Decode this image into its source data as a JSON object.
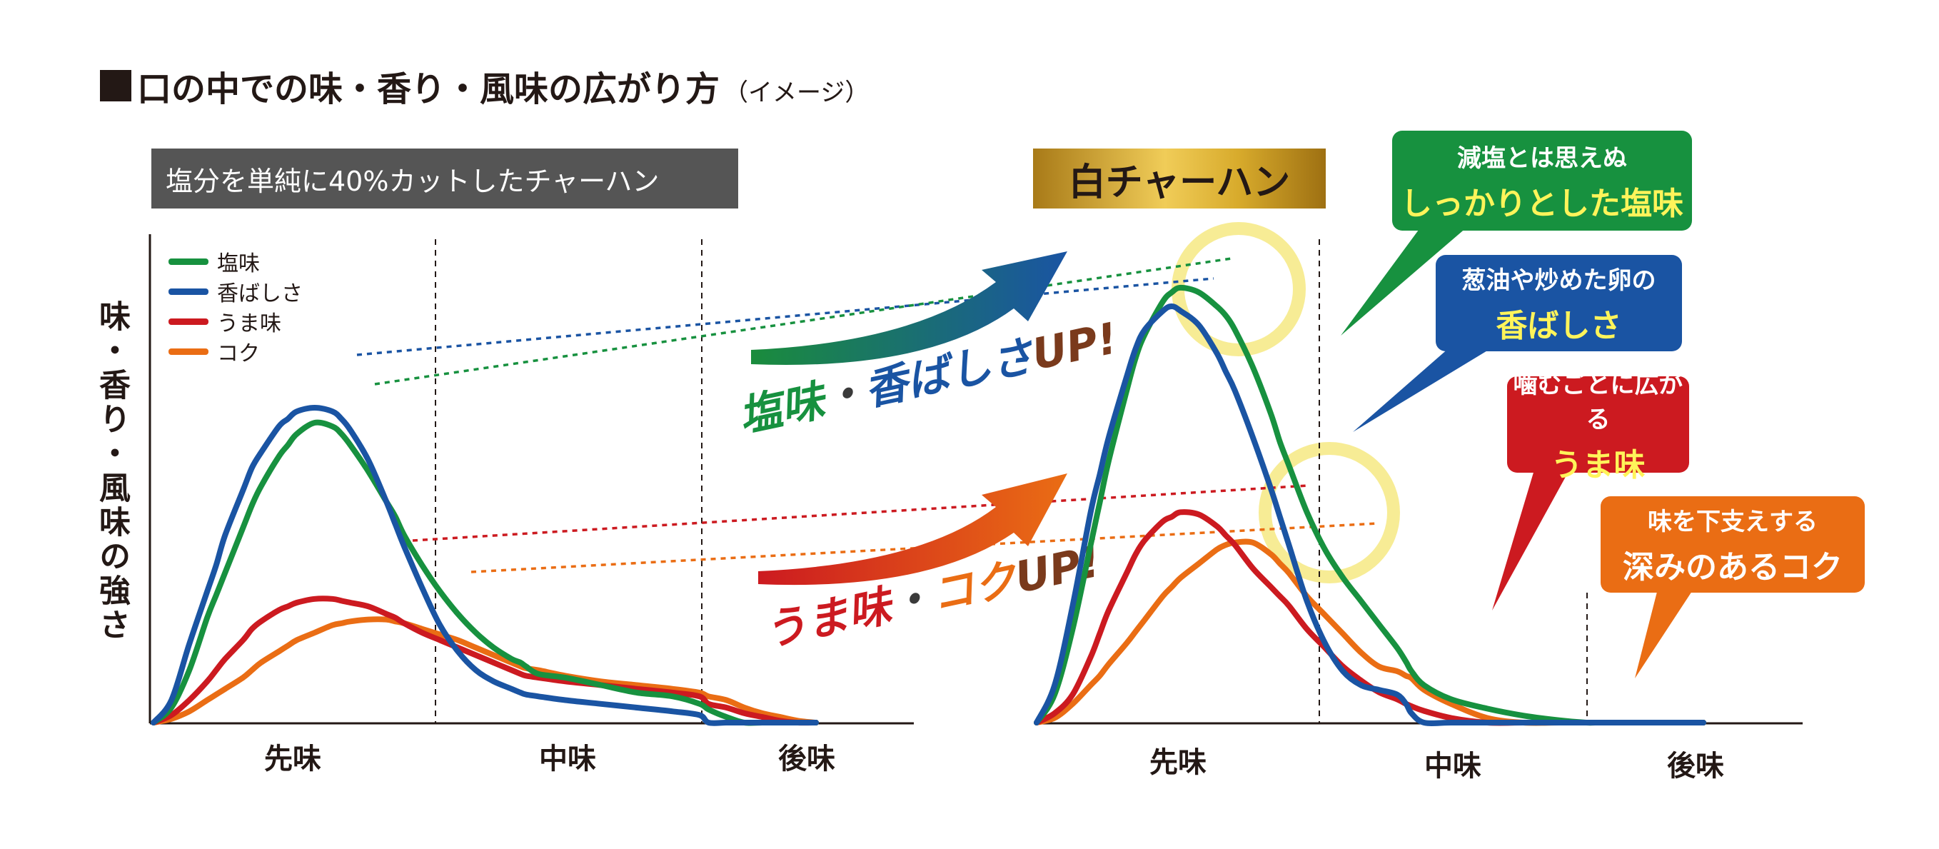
{
  "title": {
    "main": "口の中での味・香り・風味の広がり方",
    "note": "（イメージ）"
  },
  "left_banner": "塩分を単純に40%カットしたチャーハン",
  "right_banner": "白チャーハン",
  "ylabel": "味・香り・風味の強さ",
  "arrow_labels": {
    "top": {
      "part1": "塩味",
      "sep": "・",
      "part2": "香ばしさ",
      "part3": "UP!"
    },
    "bottom": {
      "part1": "うま味",
      "sep": "・",
      "part2": "コク",
      "part3": "UP!"
    }
  },
  "callouts": {
    "salt": {
      "line1": "減塩とは思えぬ",
      "line2": "しっかりとした塩味"
    },
    "aroma": {
      "line1": "葱油や炒めた卵の",
      "line2": "香ばしさ"
    },
    "umami": {
      "line1": "噛むごとに広がる",
      "line2": "うま味"
    },
    "koku": {
      "line1": "味を下支えする",
      "line2": "深みのあるコク"
    }
  },
  "colors": {
    "salt": "#17913f",
    "aroma": "#1a54a3",
    "umami": "#cc1a20",
    "koku": "#ea6d14"
  },
  "chart_data": [
    {
      "type": "line",
      "x": [
        0,
        0.1,
        0.2,
        0.3,
        0.35,
        0.4,
        0.5,
        0.55,
        0.6,
        0.7,
        0.75,
        0.8,
        0.9,
        1.0,
        1.05,
        1.1,
        1.2,
        1.3,
        1.35,
        1.4,
        1.5,
        1.6,
        1.7,
        1.8,
        1.9,
        2.0,
        2.05,
        2.08,
        2.15,
        2.3,
        2.5,
        2.7,
        2.9,
        3.05,
        3.1,
        3.2,
        3.3,
        3.4,
        3.5,
        3.6,
        3.7
      ],
      "categories": [
        "先味",
        "中味",
        "後味"
      ],
      "series": [
        {
          "name": "塩味",
          "color_key": "salt",
          "values": [
            0,
            4,
            14,
            28,
            34,
            40,
            52,
            58,
            63,
            71,
            74,
            77,
            80,
            79,
            77,
            74,
            67,
            59,
            55,
            50,
            42,
            35,
            29,
            24,
            20,
            17,
            16,
            15,
            13,
            12,
            10,
            8,
            7,
            5,
            3.5,
            1.5,
            0,
            0,
            0,
            0,
            0
          ]
        },
        {
          "name": "香ばしさ",
          "color_key": "aroma",
          "values": [
            0,
            6,
            21,
            35,
            42,
            50,
            62,
            68,
            72,
            79,
            81,
            83,
            84,
            83,
            81,
            78,
            70,
            59,
            53,
            47,
            36,
            26,
            19,
            14,
            11,
            9,
            8,
            7.5,
            7,
            6,
            5,
            4,
            3,
            2,
            0,
            0,
            0,
            0,
            0,
            0,
            0
          ]
        },
        {
          "name": "うま味",
          "color_key": "umami",
          "values": [
            0,
            2,
            6,
            11,
            14,
            17,
            22,
            25,
            27,
            30,
            31,
            32,
            33,
            33,
            32.5,
            32,
            31,
            29,
            28,
            26.5,
            24,
            22,
            20,
            18,
            16,
            14,
            13,
            12.5,
            12,
            11,
            10,
            9,
            8,
            7,
            5,
            4,
            2.5,
            1.5,
            0.5,
            0,
            0
          ]
        },
        {
          "name": "コク",
          "color_key": "koku",
          "values": [
            0,
            1,
            3,
            6,
            7.5,
            9,
            12,
            14,
            16,
            19,
            20.5,
            22,
            24,
            26,
            26.5,
            27,
            27.5,
            27.5,
            27,
            26.5,
            25,
            23.5,
            22,
            20,
            18,
            16,
            15,
            14.5,
            14,
            12.5,
            11,
            10,
            9,
            8,
            7,
            6,
            4,
            2.5,
            1.5,
            0.5,
            0
          ]
        }
      ]
    },
    {
      "type": "line",
      "x": [
        0,
        0.1,
        0.2,
        0.3,
        0.35,
        0.4,
        0.5,
        0.55,
        0.6,
        0.7,
        0.75,
        0.8,
        0.9,
        1.0,
        1.05,
        1.1,
        1.2,
        1.3,
        1.35,
        1.4,
        1.5,
        1.6,
        1.7,
        1.8,
        1.9,
        2.0,
        2.05,
        2.08,
        2.15,
        2.3,
        2.5,
        2.7,
        2.9,
        3.05,
        3.1,
        3.2,
        3.3,
        3.4,
        3.5,
        3.6,
        3.7
      ],
      "categories": [
        "先味",
        "中味",
        "後味"
      ],
      "series": [
        {
          "name": "塩味",
          "color_key": "salt",
          "values": [
            0,
            6,
            20,
            38,
            47,
            56,
            71,
            78,
            83,
            90,
            92,
            93,
            92,
            89,
            87,
            84,
            76,
            66,
            60,
            55,
            45,
            37,
            31,
            26,
            21,
            16,
            13,
            11,
            8,
            5,
            3,
            1.5,
            0.5,
            0,
            0,
            0,
            0,
            0,
            0,
            0,
            0
          ]
        },
        {
          "name": "香ばしさ",
          "color_key": "aroma",
          "values": [
            0,
            8,
            25,
            45,
            53,
            61,
            74,
            80,
            84,
            88,
            89,
            88,
            85,
            79,
            75,
            71,
            61,
            50,
            44,
            38,
            26,
            17,
            11,
            8,
            7,
            6,
            4,
            2,
            0,
            0,
            0,
            0,
            0,
            0,
            0,
            0,
            0,
            0,
            0,
            0,
            0
          ]
        },
        {
          "name": "うま味",
          "color_key": "umami",
          "values": [
            0,
            2,
            6,
            14,
            19,
            24,
            32,
            36,
            39,
            43,
            44,
            45,
            44.5,
            42,
            40,
            38,
            33,
            29,
            27,
            25,
            20,
            16,
            12,
            9,
            6.5,
            5,
            4,
            3.5,
            2.5,
            1,
            0,
            0,
            0,
            0,
            0,
            0,
            0,
            0,
            0,
            0,
            0
          ]
        },
        {
          "name": "コク",
          "color_key": "koku",
          "values": [
            0,
            1,
            4,
            8,
            10,
            12.5,
            17,
            19.5,
            22,
            27,
            29,
            31,
            34,
            37,
            38,
            38.5,
            38.5,
            36,
            34,
            32,
            27,
            23,
            19,
            15,
            12,
            11,
            10,
            9.5,
            7,
            4,
            1,
            0,
            0,
            0,
            0,
            0,
            0,
            0,
            0,
            0,
            0
          ]
        }
      ]
    }
  ]
}
